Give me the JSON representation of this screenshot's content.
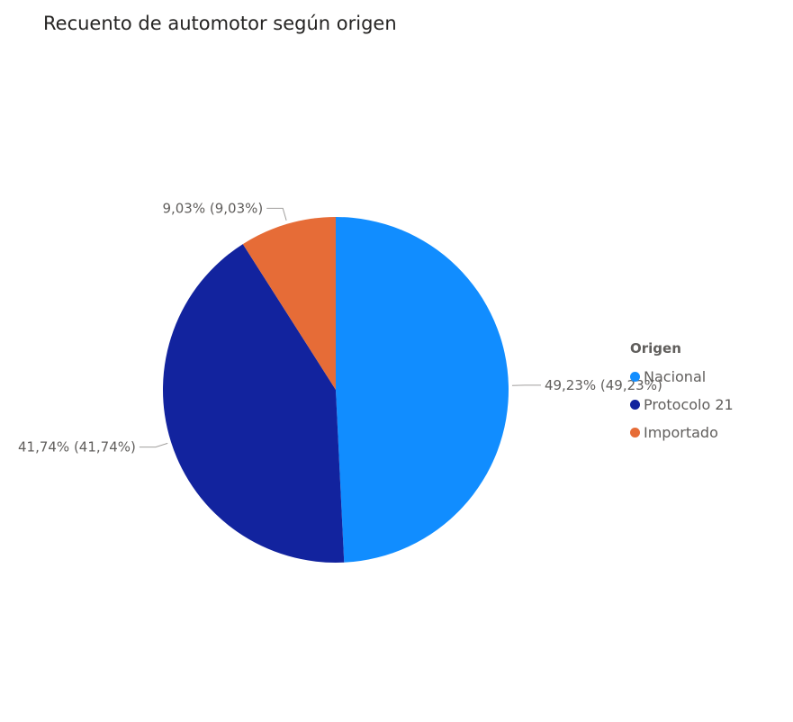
{
  "chart_data": {
    "type": "pie",
    "title": "Recuento de automotor según origen",
    "legend_title": "Origen",
    "legend_position": "right",
    "slices": [
      {
        "name": "Nacional",
        "value": 49.23,
        "label": "49,23% (49,23%)",
        "color": "#118dff"
      },
      {
        "name": "Protocolo 21",
        "value": 41.74,
        "label": "41,74% (41,74%)",
        "color": "#12239e"
      },
      {
        "name": "Importado",
        "value": 9.03,
        "label": "9,03% (9,03%)",
        "color": "#e66c37"
      }
    ]
  }
}
